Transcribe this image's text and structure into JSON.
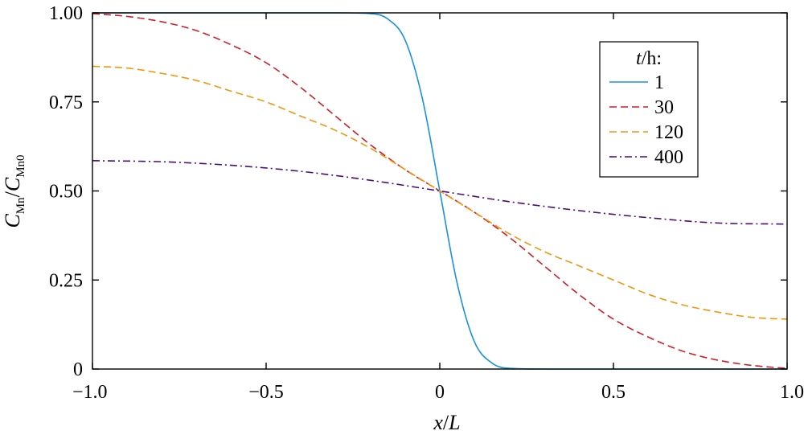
{
  "chart_data": {
    "type": "line",
    "xlabel": {
      "var": "x",
      "sep": "/",
      "unit": "L"
    },
    "ylabel": {
      "num_var": "C",
      "num_sub": "Mn",
      "sep": "/",
      "den_var": "C",
      "den_sub": "Mn0"
    },
    "xlim": [
      -1.0,
      1.0
    ],
    "ylim": [
      0,
      1.0
    ],
    "x_ticks": [
      -1.0,
      -0.5,
      0,
      0.5,
      1.0
    ],
    "x_tick_labels": [
      "−1.0",
      "−0.5",
      "0",
      "0.5",
      "1.0"
    ],
    "y_ticks": [
      0,
      0.25,
      0.5,
      0.75,
      1.0
    ],
    "y_tick_labels": [
      "0",
      "0.25",
      "0.50",
      "0.75",
      "1.00"
    ],
    "grid": false,
    "legend": {
      "placement": "top-right",
      "title_var": "t",
      "title_rest": "/h:"
    },
    "series": [
      {
        "name": "1",
        "color": "#1a8fe0",
        "dash": "solid",
        "x": [
          -1.0,
          -0.5,
          -0.3,
          -0.2,
          -0.15,
          -0.1,
          -0.05,
          0,
          0.05,
          0.1,
          0.15,
          0.2,
          0.3,
          0.5,
          1.0
        ],
        "y": [
          1.0,
          1.0,
          1.0,
          0.998,
          0.983,
          0.924,
          0.759,
          0.5,
          0.241,
          0.076,
          0.017,
          0.002,
          0.0,
          0.0,
          0.0
        ]
      },
      {
        "name": "30",
        "color": "#cc1f2b",
        "dash": "dashed",
        "x": [
          -1.0,
          -0.9,
          -0.8,
          -0.7,
          -0.6,
          -0.5,
          -0.4,
          -0.3,
          -0.2,
          -0.1,
          0,
          0.1,
          0.2,
          0.3,
          0.4,
          0.5,
          0.6,
          0.7,
          0.8,
          0.9,
          1.0
        ],
        "y": [
          0.998,
          0.99,
          0.975,
          0.95,
          0.91,
          0.86,
          0.79,
          0.71,
          0.63,
          0.56,
          0.5,
          0.44,
          0.37,
          0.29,
          0.21,
          0.14,
          0.09,
          0.05,
          0.025,
          0.01,
          0.002
        ]
      },
      {
        "name": "120",
        "color": "#f0960f",
        "dash": "dashed",
        "x": [
          -1.0,
          -0.9,
          -0.8,
          -0.7,
          -0.6,
          -0.5,
          -0.4,
          -0.3,
          -0.2,
          -0.1,
          0,
          0.1,
          0.2,
          0.3,
          0.4,
          0.5,
          0.6,
          0.7,
          0.8,
          0.9,
          1.0
        ],
        "y": [
          0.85,
          0.845,
          0.83,
          0.81,
          0.78,
          0.75,
          0.71,
          0.67,
          0.62,
          0.56,
          0.5,
          0.44,
          0.38,
          0.33,
          0.29,
          0.25,
          0.21,
          0.18,
          0.16,
          0.145,
          0.14
        ]
      },
      {
        "name": "400",
        "color": "#4b0d78",
        "dash": "dashdot",
        "x": [
          -1.0,
          -0.8,
          -0.6,
          -0.4,
          -0.2,
          0,
          0.2,
          0.4,
          0.6,
          0.8,
          1.0
        ],
        "y": [
          0.585,
          0.582,
          0.572,
          0.555,
          0.53,
          0.5,
          0.47,
          0.445,
          0.425,
          0.41,
          0.407
        ]
      }
    ]
  }
}
